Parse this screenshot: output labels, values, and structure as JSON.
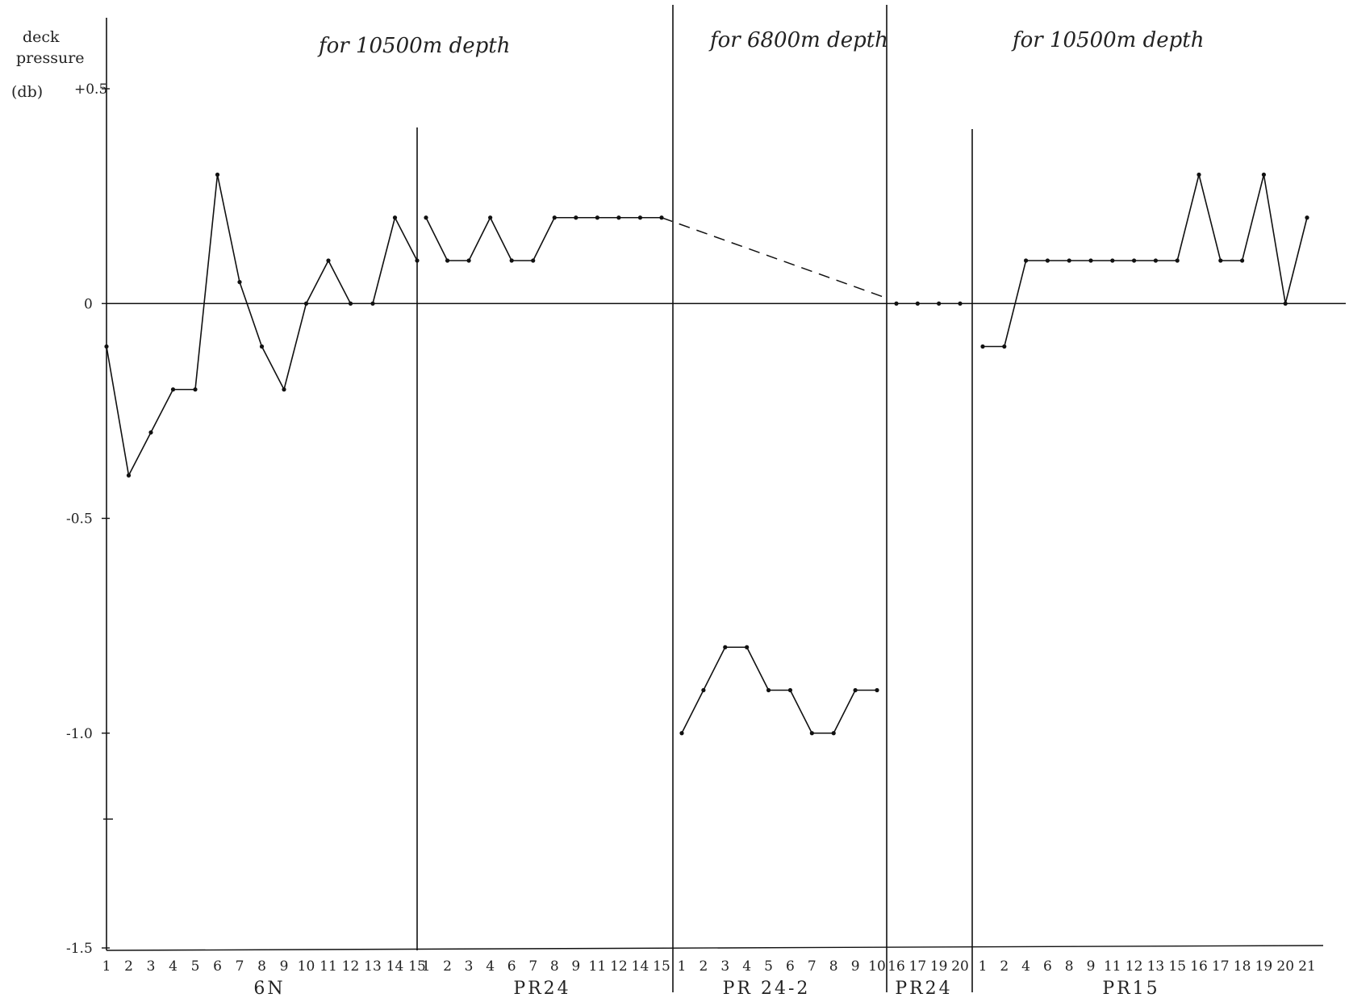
{
  "chart_data": {
    "type": "line",
    "ylabel_lines": [
      "deck",
      "pressure",
      "(db)"
    ],
    "yticks": [
      "+0.5",
      "0",
      "-0.5",
      "-1.0",
      "-1.5"
    ],
    "ytick_values": [
      0.5,
      0,
      -0.5,
      -1.0,
      -1.5
    ],
    "ylim": [
      -1.5,
      0.5
    ],
    "annotations": [
      "for 10500m depth",
      "for 6800m depth",
      "for 10500m depth"
    ],
    "groups": [
      {
        "name": "6N",
        "labels": [
          "1",
          "2",
          "3",
          "4",
          "5",
          "6",
          "7",
          "8",
          "9",
          "10",
          "11",
          "12",
          "13",
          "14",
          "15"
        ]
      },
      {
        "name": "PR24",
        "labels": [
          "1",
          "2",
          "3",
          "4",
          "6",
          "7",
          "8",
          "9",
          "11",
          "12",
          "14",
          "15"
        ]
      },
      {
        "name": "PR 24-2",
        "labels": [
          "1",
          "2",
          "3",
          "4",
          "5",
          "6",
          "7",
          "8",
          "9",
          "10"
        ]
      },
      {
        "name": "PR24",
        "labels": [
          "16",
          "17",
          "19",
          "20"
        ]
      },
      {
        "name": "PR15",
        "labels": [
          "1",
          "2",
          "4",
          "6",
          "8",
          "9",
          "11",
          "12",
          "13",
          "15",
          "16",
          "17",
          "18",
          "19",
          "20",
          "21"
        ]
      }
    ],
    "series": [
      {
        "values": [
          -0.1,
          -0.4,
          -0.3,
          -0.2,
          -0.2,
          0.3,
          0.05,
          -0.1,
          -0.2,
          0.0,
          0.1,
          0.0,
          0.0,
          0.2,
          0.1
        ]
      },
      {
        "values": [
          0.2,
          0.1,
          0.1,
          0.2,
          0.1,
          0.1,
          0.2,
          0.2,
          0.2,
          0.2,
          0.2,
          0.2
        ]
      },
      {
        "values": [
          -1.0,
          -0.9,
          -0.8,
          -0.8,
          -0.9,
          -0.9,
          -1.0,
          -1.0,
          -0.9,
          -0.9
        ]
      },
      {
        "values": [
          0.0,
          0.0,
          0.0,
          0.0
        ]
      },
      {
        "values": [
          -0.1,
          -0.1,
          0.1,
          0.1,
          0.1,
          0.1,
          0.1,
          0.1,
          0.1,
          0.1,
          0.3,
          0.1,
          0.1,
          0.3,
          0.0,
          0.2
        ]
      }
    ],
    "grid": false,
    "line_color": "#111111"
  }
}
